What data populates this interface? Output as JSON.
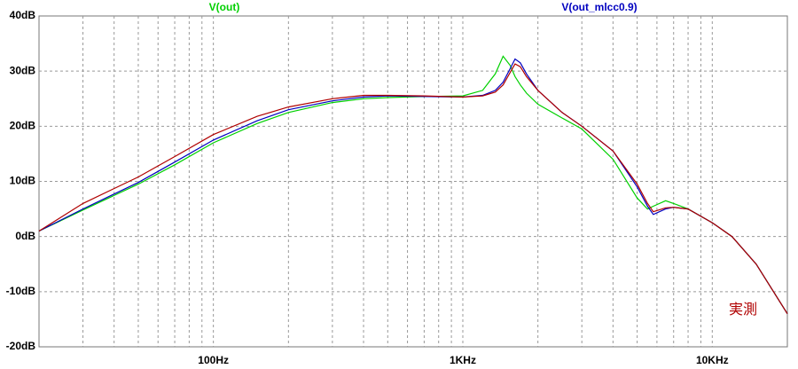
{
  "chart_data": {
    "type": "line",
    "x": [
      20,
      30,
      50,
      70,
      100,
      150,
      200,
      300,
      400,
      500,
      700,
      1000,
      1200,
      1350,
      1450,
      1550,
      1620,
      1700,
      1800,
      2000,
      2500,
      3000,
      4000,
      5000,
      5500,
      5800,
      6500,
      7000,
      8000,
      10000,
      12000,
      15000,
      20000
    ],
    "series": [
      {
        "name": "V(out)",
        "color": "#00d000",
        "values": [
          1,
          4.8,
          9.5,
          13,
          17,
          20.5,
          22.5,
          24.3,
          25,
          25.2,
          25.4,
          25.5,
          26.5,
          29.5,
          32.7,
          31,
          29,
          27.5,
          26,
          24,
          21.5,
          19.5,
          14,
          7,
          5,
          5.5,
          6.5,
          6,
          5,
          2.5,
          0,
          -5,
          -14
        ]
      },
      {
        "name": "V(out_mlcc0.9)",
        "color": "#0000c0",
        "values": [
          1,
          5,
          9.8,
          13.5,
          17.5,
          21,
          23,
          24.6,
          25.3,
          25.5,
          25.4,
          25.3,
          25.6,
          26.5,
          28,
          30.5,
          32.2,
          31.5,
          29.5,
          26.5,
          22.5,
          20,
          15.5,
          9,
          5.5,
          4,
          5,
          5.3,
          5,
          2.5,
          0,
          -5,
          -14
        ]
      },
      {
        "color": "#b00000",
        "values": [
          1,
          6,
          10.8,
          14.5,
          18.5,
          21.8,
          23.5,
          25,
          25.6,
          25.6,
          25.5,
          25.3,
          25.5,
          26.2,
          27.5,
          29.8,
          31.3,
          30.8,
          29,
          26.5,
          22.5,
          20,
          15.5,
          9.5,
          6,
          4.5,
          5.2,
          5.3,
          5,
          2.5,
          0,
          -5,
          -14
        ]
      }
    ],
    "annotation": "実測",
    "xscale": "log",
    "xlim": [
      20,
      20000
    ],
    "xticks": [
      {
        "value": 100,
        "label": "100Hz"
      },
      {
        "value": 1000,
        "label": "1KHz"
      },
      {
        "value": 10000,
        "label": "10KHz"
      }
    ],
    "xminorticks": [
      30,
      40,
      50,
      60,
      70,
      80,
      90,
      200,
      300,
      400,
      500,
      600,
      700,
      800,
      900,
      2000,
      3000,
      4000,
      5000,
      6000,
      7000,
      8000,
      9000
    ],
    "ylim": [
      -20,
      40
    ],
    "yticks": [
      {
        "value": 40,
        "label": "40dB"
      },
      {
        "value": 30,
        "label": "30dB"
      },
      {
        "value": 20,
        "label": "20dB"
      },
      {
        "value": 10,
        "label": "10dB"
      },
      {
        "value": 0,
        "label": "0dB"
      },
      {
        "value": -10,
        "label": "-10dB"
      },
      {
        "value": -20,
        "label": "-20dB"
      }
    ],
    "grid": true
  }
}
